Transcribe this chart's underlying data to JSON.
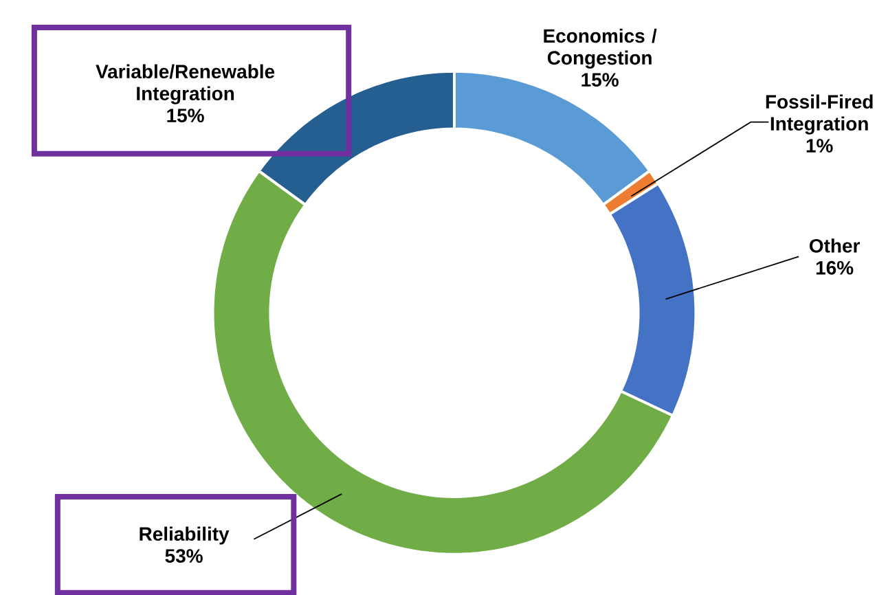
{
  "chart_data": {
    "type": "donut",
    "categories": [
      "Economics / Congestion",
      "Fossil-Fired Integration",
      "Other",
      "Reliability",
      "Variable/Renewable Integration"
    ],
    "values": [
      15,
      1,
      16,
      53,
      15
    ],
    "colors": [
      "#5b9bd5",
      "#ed7d31",
      "#4472c4",
      "#70ad47",
      "#255e91"
    ],
    "value_labels": [
      "15%",
      "1%",
      "16%",
      "53%",
      "15%"
    ]
  }
}
